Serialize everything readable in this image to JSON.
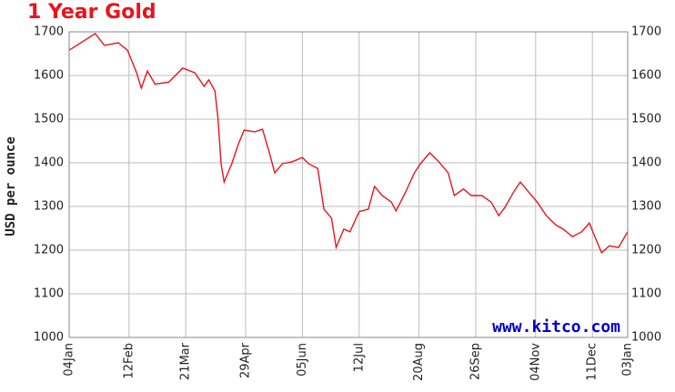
{
  "chart_data": {
    "type": "line",
    "title": "1 Year Gold",
    "ylabel": "USD per ounce",
    "watermark": "www.kitco.com",
    "x": [
      0,
      17,
      23,
      32,
      38,
      44,
      47,
      51,
      56,
      65,
      74,
      82,
      88,
      91,
      95,
      97,
      99,
      101,
      106,
      110,
      114,
      121,
      126,
      130,
      134,
      139,
      145,
      152,
      156,
      162,
      166,
      171,
      174,
      179,
      183,
      189,
      195,
      199,
      204,
      210,
      213,
      219,
      225,
      229,
      235,
      241,
      247,
      251,
      257,
      262,
      269,
      275,
      280,
      284,
      290,
      294,
      299,
      305,
      311,
      317,
      322,
      328,
      334,
      339,
      343,
      347,
      352,
      358,
      364
    ],
    "series": [
      {
        "name": "Gold",
        "color": "#e8141c",
        "values": [
          1658,
          1696,
          1669,
          1675,
          1658,
          1606,
          1571,
          1610,
          1580,
          1585,
          1617,
          1606,
          1575,
          1590,
          1565,
          1502,
          1398,
          1356,
          1398,
          1440,
          1475,
          1471,
          1477,
          1429,
          1377,
          1398,
          1402,
          1412,
          1398,
          1387,
          1294,
          1273,
          1206,
          1248,
          1242,
          1288,
          1294,
          1346,
          1325,
          1310,
          1290,
          1331,
          1377,
          1398,
          1423,
          1402,
          1377,
          1325,
          1340,
          1325,
          1325,
          1310,
          1279,
          1298,
          1335,
          1356,
          1335,
          1310,
          1279,
          1258,
          1248,
          1231,
          1242,
          1262,
          1227,
          1194,
          1210,
          1206,
          1242
        ]
      }
    ],
    "xlim": [
      0,
      364
    ],
    "xticks": [
      {
        "value": 0,
        "label": "04Jan"
      },
      {
        "value": 39,
        "label": "12Feb"
      },
      {
        "value": 76,
        "label": "21Mar"
      },
      {
        "value": 115,
        "label": "29Apr"
      },
      {
        "value": 152,
        "label": "05Jun"
      },
      {
        "value": 189,
        "label": "12Jul"
      },
      {
        "value": 228,
        "label": "20Aug"
      },
      {
        "value": 265,
        "label": "26Sep"
      },
      {
        "value": 304,
        "label": "04Nov"
      },
      {
        "value": 341,
        "label": "11Dec"
      },
      {
        "value": 364,
        "label": "03Jan"
      }
    ],
    "ylim": [
      1000,
      1700
    ],
    "yticks": [
      1000,
      1100,
      1200,
      1300,
      1400,
      1500,
      1600,
      1700
    ],
    "grid": true
  }
}
